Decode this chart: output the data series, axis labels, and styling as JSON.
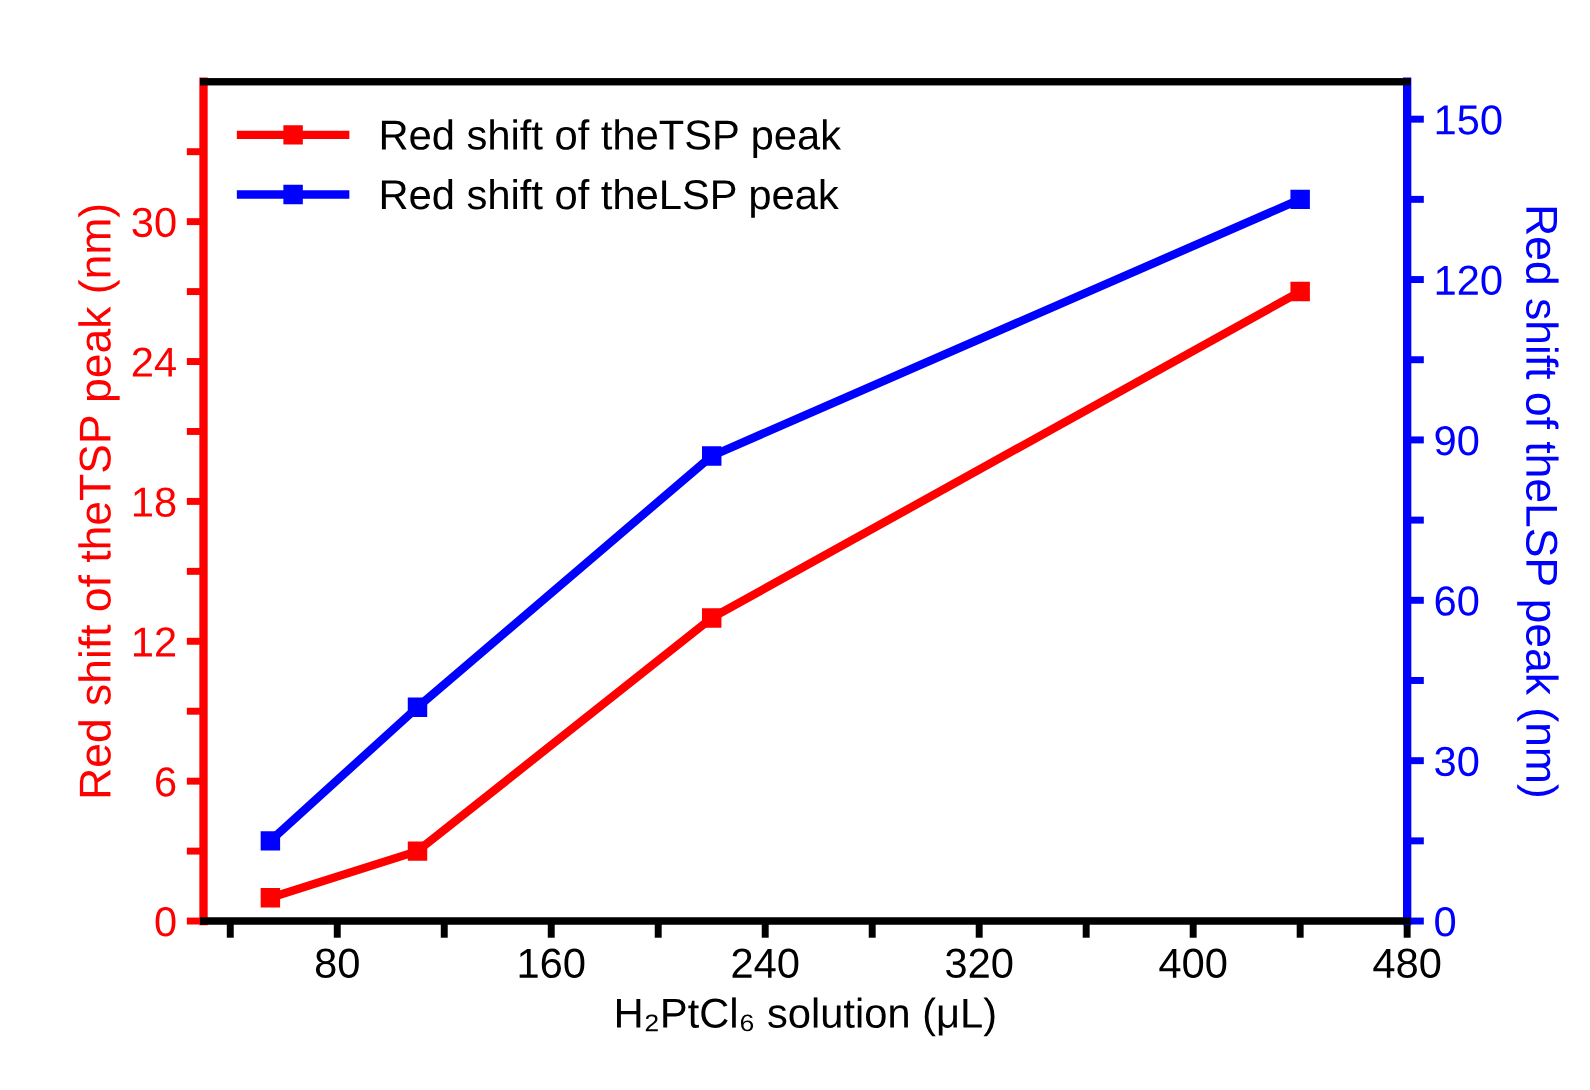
{
  "chart_data": {
    "type": "line",
    "xlabel": "H₂PtCl₆ solution (μL)",
    "ylabel": "Red shift of theTSP peak (nm)",
    "y2label": "Red shift of theLSP peak (nm)",
    "x": [
      55,
      110,
      220,
      440
    ],
    "series": [
      {
        "name": "Red shift of theTSP peak",
        "color": "#ff0000",
        "values": [
          1,
          3,
          13,
          27
        ]
      },
      {
        "name": "Red shift of theLSP peak",
        "color": "#0000ff",
        "values": [
          15,
          40,
          87,
          135
        ],
        "axis": "y2"
      }
    ],
    "xlim": [
      30,
      480
    ],
    "ylim": [
      0,
      36
    ],
    "y2lim": [
      0,
      157
    ],
    "xticks": [
      {
        "value": 40,
        "label": null
      },
      80,
      {
        "value": 120,
        "label": null
      },
      160,
      {
        "value": 200,
        "label": null
      },
      240,
      {
        "value": 280,
        "label": null
      },
      320,
      {
        "value": 360,
        "label": null
      },
      400,
      {
        "value": 440,
        "label": null
      },
      480
    ],
    "yticks": [
      0,
      {
        "value": 3,
        "label": null
      },
      6,
      {
        "value": 9,
        "label": null
      },
      12,
      {
        "value": 15,
        "label": null
      },
      18,
      {
        "value": 21,
        "label": null
      },
      24,
      {
        "value": 27,
        "label": null
      },
      30,
      {
        "value": 33,
        "label": null
      }
    ],
    "y2ticks": [
      0,
      {
        "value": 15,
        "label": null
      },
      30,
      {
        "value": 45,
        "label": null
      },
      60,
      {
        "value": 75,
        "label": null
      },
      90,
      {
        "value": 105,
        "label": null
      },
      120,
      {
        "value": 135,
        "label": null
      },
      150
    ],
    "marker": "square",
    "line_style": "solid",
    "legend": "top left",
    "grid": false
  }
}
